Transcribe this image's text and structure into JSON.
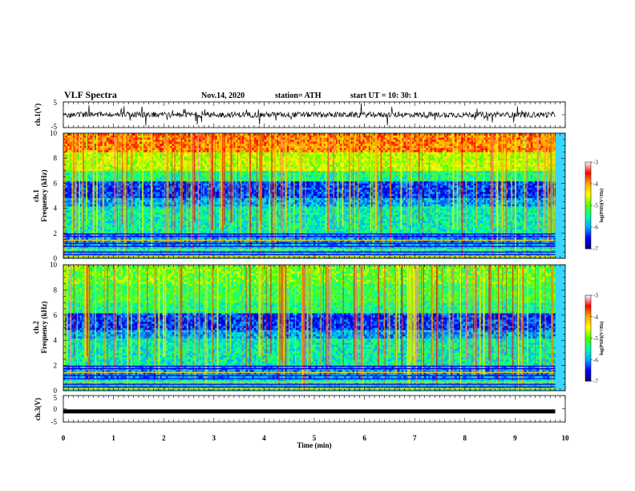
{
  "header": {
    "title": "VLF Spectra",
    "date": "Nov.14, 2020",
    "station": "station= ATH",
    "start": "start  UT  =   10: 30: 1"
  },
  "chart_data": [
    {
      "type": "line",
      "ylabel": "ch.1(V)",
      "ylim": [
        -5,
        5
      ],
      "yticks": [
        "5",
        "-5"
      ],
      "x_range": [
        0,
        9.8
      ],
      "baseline": 0,
      "color": "#000000"
    },
    {
      "type": "heatmap",
      "ylabel": [
        "ch.1",
        "Frequency (kHz)"
      ],
      "ylim": [
        0,
        10
      ],
      "yticks": [
        "0",
        "2",
        "4",
        "6",
        "8",
        "10"
      ],
      "x_range": [
        0,
        9.8
      ],
      "colorbar": {
        "label": "log(PSD)(V²/Hz)",
        "range": [
          -7,
          -3
        ],
        "ticks": [
          "-3",
          "-4",
          "-5",
          "-6",
          "-7"
        ],
        "colors": [
          "#00007f",
          "#0000ff",
          "#00aaff",
          "#00ffaa",
          "#55ff00",
          "#ffff00",
          "#ffaa00",
          "#ff0000",
          "#ffffff"
        ]
      }
    },
    {
      "type": "heatmap",
      "ylabel": [
        "ch.2",
        "Frequency (kHz)"
      ],
      "ylim": [
        0,
        10
      ],
      "yticks": [
        "0",
        "2",
        "4",
        "6",
        "8",
        "10"
      ],
      "x_range": [
        0,
        9.8
      ],
      "colorbar": {
        "label": "log(PSD)(V²/Hz)",
        "range": [
          -7,
          -3
        ],
        "ticks": [
          "-3",
          "-4",
          "-5",
          "-6",
          "-7"
        ],
        "colors": [
          "#00007f",
          "#0000ff",
          "#00aaff",
          "#00ffaa",
          "#55ff00",
          "#ffff00",
          "#ffaa00",
          "#ff0000",
          "#ffffff"
        ]
      }
    },
    {
      "type": "line",
      "ylabel": "ch.3(V)",
      "ylim": [
        -5,
        5
      ],
      "yticks": [
        "5",
        "0",
        "-5"
      ],
      "x_range": [
        0,
        9.8
      ],
      "baseline": -1,
      "color": "#000000"
    }
  ],
  "xaxis": {
    "label": "Time  (min)",
    "range": [
      0,
      10
    ],
    "ticks": [
      "0",
      "1",
      "2",
      "3",
      "4",
      "5",
      "6",
      "7",
      "8",
      "9",
      "10"
    ]
  }
}
